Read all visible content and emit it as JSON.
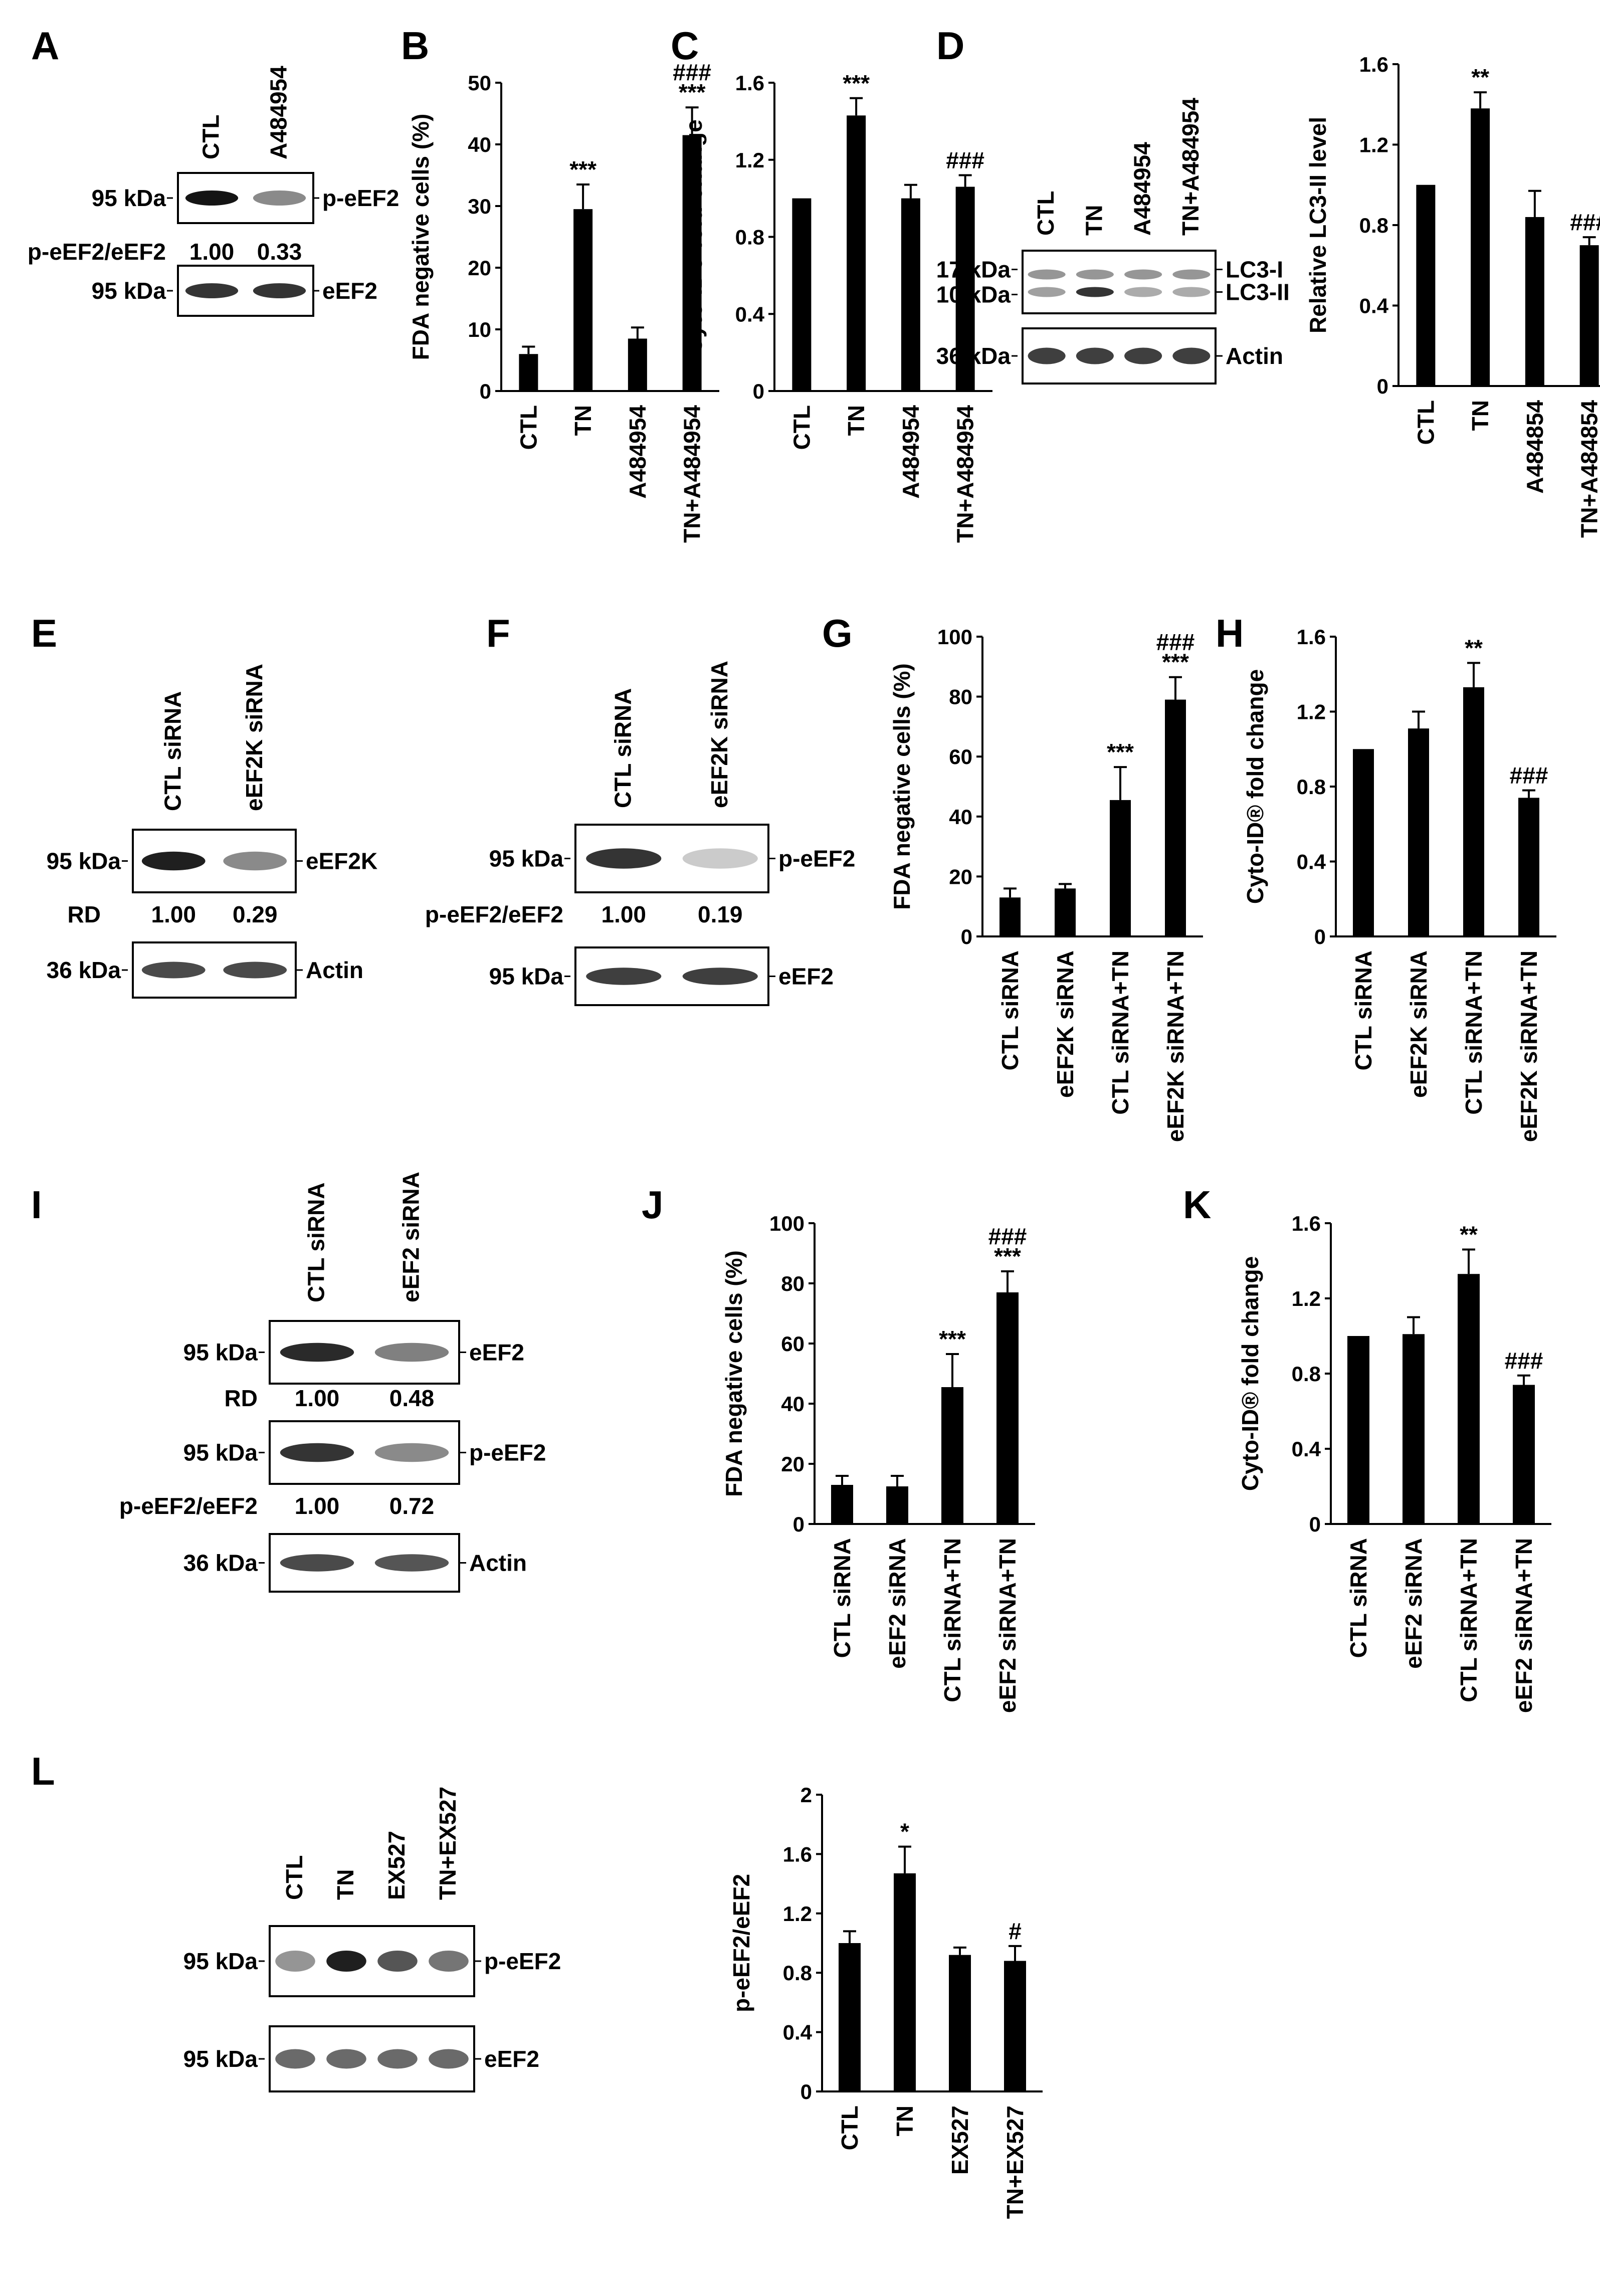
{
  "figure": {
    "panel_labels": [
      "A",
      "B",
      "C",
      "D",
      "E",
      "F",
      "G",
      "H",
      "I",
      "J",
      "K",
      "L"
    ],
    "colors": {
      "bar": "#000000",
      "background": "#ffffff"
    }
  },
  "blots": [
    {
      "panel": "A",
      "lanes": [
        "CTL",
        "A484954"
      ],
      "strips": [
        {
          "kda": "95 kDa",
          "protein": "p-eEF2",
          "intensities": [
            1.0,
            0.45
          ]
        },
        {
          "kda": "95 kDa",
          "protein": "eEF2",
          "intensities": [
            0.85,
            0.85
          ]
        }
      ],
      "quant": [
        {
          "label": "p-eEF2/eEF2",
          "values": [
            "1.00",
            "0.33"
          ]
        }
      ]
    },
    {
      "panel": "D",
      "lanes": [
        "CTL",
        "TN",
        "A484954",
        "TN+A484954"
      ],
      "strips": [
        {
          "kda": [
            "17 kDa",
            "10 kDa"
          ],
          "protein": [
            "LC3-I",
            "LC3-II"
          ],
          "intensities": [
            0.35,
            0.85,
            0.3,
            0.3
          ]
        },
        {
          "kda": "36 kDa",
          "protein": "Actin",
          "intensities": [
            0.8,
            0.8,
            0.8,
            0.8
          ]
        }
      ]
    },
    {
      "panel": "E",
      "lanes": [
        "CTL siRNA",
        "eEF2K siRNA"
      ],
      "strips": [
        {
          "kda": "95 kDa",
          "protein": "eEF2K",
          "intensities": [
            0.95,
            0.45
          ]
        },
        {
          "kda": "36 kDa",
          "protein": "Actin",
          "intensities": [
            0.75,
            0.75
          ]
        }
      ],
      "quant": [
        {
          "label": "RD",
          "values": [
            "1.00",
            "0.29"
          ]
        }
      ]
    },
    {
      "panel": "F",
      "lanes": [
        "CTL siRNA",
        "eEF2K siRNA"
      ],
      "strips": [
        {
          "kda": "95 kDa",
          "protein": "p-eEF2",
          "intensities": [
            0.85,
            0.15
          ]
        },
        {
          "kda": "95 kDa",
          "protein": "eEF2",
          "intensities": [
            0.8,
            0.8
          ]
        }
      ],
      "quant": [
        {
          "label": "p-eEF2/eEF2",
          "values": [
            "1.00",
            "0.19"
          ]
        }
      ]
    },
    {
      "panel": "I",
      "lanes": [
        "CTL siRNA",
        "eEF2 siRNA"
      ],
      "strips": [
        {
          "kda": "95 kDa",
          "protein": "eEF2",
          "intensities": [
            0.9,
            0.5
          ]
        },
        {
          "kda": "95 kDa",
          "protein": "p-eEF2",
          "intensities": [
            0.85,
            0.45
          ]
        },
        {
          "kda": "36 kDa",
          "protein": "Actin",
          "intensities": [
            0.75,
            0.7
          ]
        }
      ],
      "quant": [
        {
          "label": "RD",
          "values": [
            "1.00",
            "0.48"
          ]
        },
        {
          "label": "p-eEF2/eEF2",
          "values": [
            "1.00",
            "0.72"
          ]
        }
      ]
    },
    {
      "panel": "L",
      "lanes": [
        "CTL",
        "TN",
        "EX527",
        "TN+EX527"
      ],
      "strips": [
        {
          "kda": "95 kDa",
          "protein": "p-eEF2",
          "intensities": [
            0.4,
            0.95,
            0.7,
            0.55
          ]
        },
        {
          "kda": "95 kDa",
          "protein": "eEF2",
          "intensities": [
            0.6,
            0.6,
            0.6,
            0.6
          ]
        }
      ]
    }
  ],
  "chart_data": [
    {
      "panel": "B",
      "type": "bar",
      "ylabel": "FDA negative cells (%)",
      "ylim": [
        0,
        50
      ],
      "yticks": [
        "0",
        "10",
        "20",
        "30",
        "40",
        "50"
      ],
      "categories": [
        "CTL",
        "TN",
        "A484954",
        "TN+A484954"
      ],
      "values": [
        6,
        29.5,
        8.5,
        41.5
      ],
      "errors": [
        1.2,
        4,
        1.8,
        4.5
      ],
      "annotations": [
        [
          "",
          ""
        ],
        [
          "***",
          ""
        ],
        [
          "",
          ""
        ],
        [
          "***",
          "###"
        ]
      ]
    },
    {
      "panel": "C",
      "type": "bar",
      "ylabel": "Cyto-ID® fold change",
      "ylim": [
        0,
        1.6
      ],
      "yticks": [
        "0",
        "0.4",
        "0.8",
        "1.2",
        "1.6"
      ],
      "categories": [
        "CTL",
        "TN",
        "A484954",
        "TN+A484954"
      ],
      "values": [
        1.0,
        1.43,
        1.0,
        1.06
      ],
      "errors": [
        0,
        0.09,
        0.07,
        0.06
      ],
      "annotations": [
        [
          "",
          ""
        ],
        [
          "***",
          ""
        ],
        [
          "",
          ""
        ],
        [
          "###",
          ""
        ]
      ]
    },
    {
      "panel": "D",
      "type": "bar",
      "ylabel": "Relative LC3-II level",
      "ylim": [
        0,
        1.6
      ],
      "yticks": [
        "0",
        "0.4",
        "0.8",
        "1.2",
        "1.6"
      ],
      "categories": [
        "CTL",
        "TN",
        "A484854",
        "TN+A484854"
      ],
      "values": [
        1.0,
        1.38,
        0.84,
        0.7
      ],
      "errors": [
        0,
        0.08,
        0.13,
        0.04
      ],
      "annotations": [
        [
          "",
          ""
        ],
        [
          "**",
          ""
        ],
        [
          "",
          ""
        ],
        [
          "###",
          ""
        ]
      ]
    },
    {
      "panel": "G",
      "type": "bar",
      "ylabel": "FDA negative cells (%)",
      "ylim": [
        0,
        100
      ],
      "yticks": [
        "0",
        "20",
        "40",
        "60",
        "80",
        "100"
      ],
      "categories": [
        "CTL siRNA",
        "eEF2K siRNA",
        "CTL siRNA+TN",
        "eEF2K siRNA+TN"
      ],
      "values": [
        13,
        16,
        45.5,
        79
      ],
      "errors": [
        3,
        1.5,
        11,
        7.5
      ],
      "annotations": [
        [
          "",
          ""
        ],
        [
          "",
          ""
        ],
        [
          "***",
          ""
        ],
        [
          "***",
          "###"
        ]
      ]
    },
    {
      "panel": "H",
      "type": "bar",
      "ylabel": "Cyto-ID® fold change",
      "ylim": [
        0,
        1.6
      ],
      "yticks": [
        "0",
        "0.4",
        "0.8",
        "1.2",
        "1.6"
      ],
      "categories": [
        "CTL siRNA",
        "eEF2K siRNA",
        "CTL siRNA+TN",
        "eEF2K siRNA+TN"
      ],
      "values": [
        1.0,
        1.11,
        1.33,
        0.74
      ],
      "errors": [
        0,
        0.09,
        0.13,
        0.04
      ],
      "annotations": [
        [
          "",
          ""
        ],
        [
          "",
          ""
        ],
        [
          "**",
          ""
        ],
        [
          "###",
          ""
        ]
      ]
    },
    {
      "panel": "J",
      "type": "bar",
      "ylabel": "FDA negative cells (%)",
      "ylim": [
        0,
        100
      ],
      "yticks": [
        "0",
        "20",
        "40",
        "60",
        "80",
        "100"
      ],
      "categories": [
        "CTL siRNA",
        "eEF2 siRNA",
        "CTL siRNA+TN",
        "eEF2 siRNA+TN"
      ],
      "values": [
        13,
        12.5,
        45.5,
        77
      ],
      "errors": [
        3,
        3.5,
        11,
        7
      ],
      "annotations": [
        [
          "",
          ""
        ],
        [
          "",
          ""
        ],
        [
          "***",
          ""
        ],
        [
          "***",
          "###"
        ]
      ]
    },
    {
      "panel": "K",
      "type": "bar",
      "ylabel": "Cyto-ID® fold change",
      "ylim": [
        0,
        1.6
      ],
      "yticks": [
        "0",
        "0.4",
        "0.8",
        "1.2",
        "1.6"
      ],
      "categories": [
        "CTL siRNA",
        "eEF2 siRNA",
        "CTL siRNA+TN",
        "eEF2 siRNA+TN"
      ],
      "values": [
        1.0,
        1.01,
        1.33,
        0.74
      ],
      "errors": [
        0,
        0.09,
        0.13,
        0.05
      ],
      "annotations": [
        [
          "",
          ""
        ],
        [
          "",
          ""
        ],
        [
          "**",
          ""
        ],
        [
          "###",
          ""
        ]
      ]
    },
    {
      "panel": "L",
      "type": "bar",
      "ylabel": "p-eEF2/eEF2",
      "ylim": [
        0,
        2
      ],
      "yticks": [
        "0",
        "0.4",
        "0.8",
        "1.2",
        "1.6",
        "2"
      ],
      "categories": [
        "CTL",
        "TN",
        "EX527",
        "TN+EX527"
      ],
      "values": [
        1.0,
        1.47,
        0.92,
        0.88
      ],
      "errors": [
        0.08,
        0.18,
        0.05,
        0.1
      ],
      "annotations": [
        [
          "",
          ""
        ],
        [
          "*",
          ""
        ],
        [
          "",
          ""
        ],
        [
          "#",
          ""
        ]
      ]
    }
  ]
}
